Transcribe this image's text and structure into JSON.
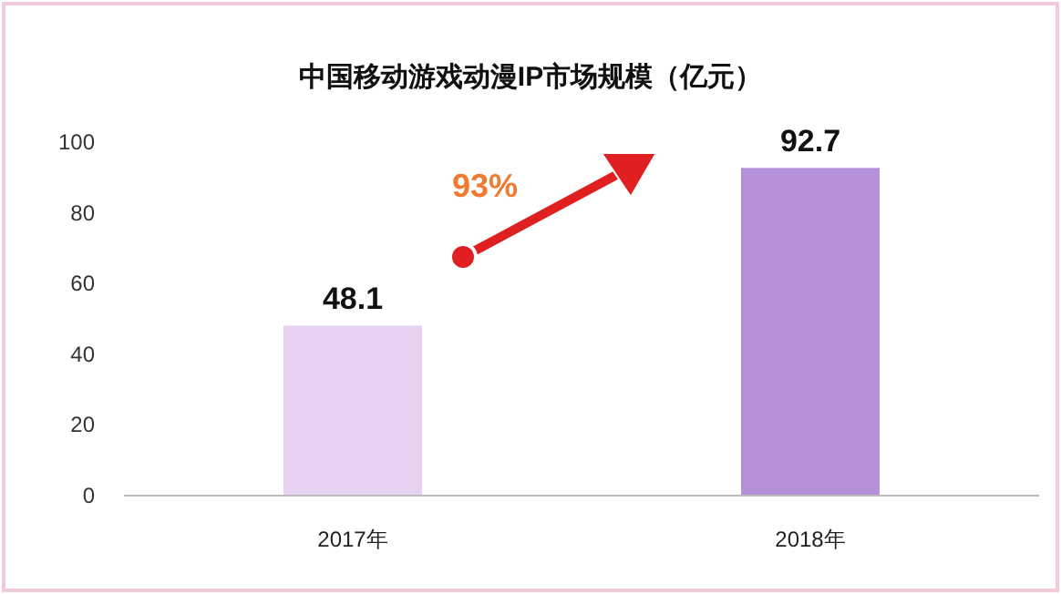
{
  "chart_data": {
    "type": "bar",
    "title": "中国移动游戏动漫IP市场规模（亿元）",
    "categories": [
      "2017年",
      "2018年"
    ],
    "values": [
      48.1,
      92.7
    ],
    "colors": [
      "#e6d2f0",
      "#b491d8"
    ],
    "ylim": [
      0,
      100
    ],
    "yticks": [
      0,
      20,
      40,
      60,
      80,
      100
    ],
    "data_labels": true,
    "grid": false,
    "annotations": [
      "93%"
    ]
  }
}
